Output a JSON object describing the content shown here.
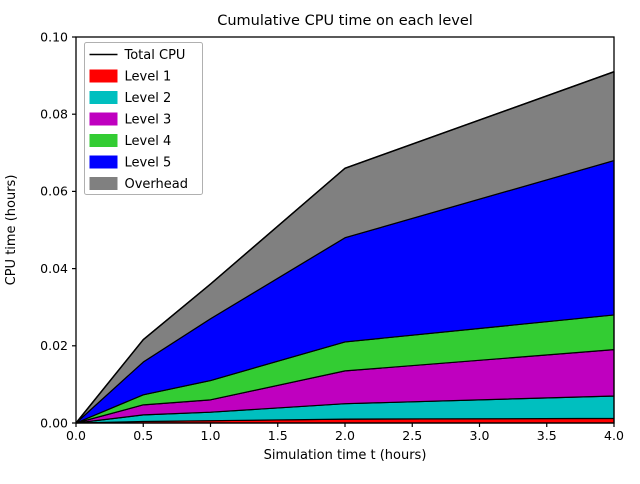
{
  "figure": {
    "title": "Cumulative CPU time on each level",
    "xlabel": "Simulation time t (hours)",
    "ylabel": "CPU time (hours)",
    "background_color": "#ffffff",
    "frame_color": "#000000",
    "legend_border_color": "#b0b0b0"
  },
  "chart_data": {
    "type": "area",
    "stacked": true,
    "title": "Cumulative CPU time on each level",
    "xlabel": "Simulation time t (hours)",
    "ylabel": "CPU time (hours)",
    "xlim": [
      0,
      4
    ],
    "ylim": [
      0,
      0.1
    ],
    "grid": false,
    "legend_position": "upper left",
    "xticks": {
      "values": [
        0,
        0.5,
        1,
        1.5,
        2,
        2.5,
        3,
        3.5,
        4
      ],
      "labels": [
        "0.0",
        "0.5",
        "1.0",
        "1.5",
        "2.0",
        "2.5",
        "3.0",
        "3.5",
        "4.0"
      ]
    },
    "yticks": {
      "values": [
        0,
        0.02,
        0.04,
        0.06,
        0.08,
        0.1
      ],
      "labels": [
        "0.00",
        "0.02",
        "0.04",
        "0.06",
        "0.08",
        "0.10"
      ]
    },
    "x": [
      0,
      0.5,
      1,
      2,
      4
    ],
    "series": [
      {
        "name": "Level 1",
        "color": "#ff0000",
        "cumulative": [
          0,
          0.0004,
          0.0006,
          0.001,
          0.0012
        ]
      },
      {
        "name": "Level 2",
        "color": "#00bfbf",
        "cumulative": [
          0,
          0.0021,
          0.0028,
          0.005,
          0.007
        ]
      },
      {
        "name": "Level 3",
        "color": "#bf00bf",
        "cumulative": [
          0,
          0.0047,
          0.006,
          0.0135,
          0.019
        ]
      },
      {
        "name": "Level 4",
        "color": "#33cc33",
        "cumulative": [
          0,
          0.0073,
          0.011,
          0.021,
          0.028
        ]
      },
      {
        "name": "Level 5",
        "color": "#0000ff",
        "cumulative": [
          0,
          0.0158,
          0.027,
          0.048,
          0.068
        ]
      },
      {
        "name": "Overhead",
        "color": "#808080",
        "cumulative": [
          0,
          0.0216,
          0.036,
          0.066,
          0.091
        ]
      }
    ],
    "total_line": {
      "name": "Total CPU",
      "color": "#000000",
      "values": [
        0,
        0.0216,
        0.036,
        0.066,
        0.091
      ]
    },
    "legend_entries": [
      "Total CPU",
      "Level 1",
      "Level 2",
      "Level 3",
      "Level 4",
      "Level 5",
      "Overhead"
    ]
  }
}
